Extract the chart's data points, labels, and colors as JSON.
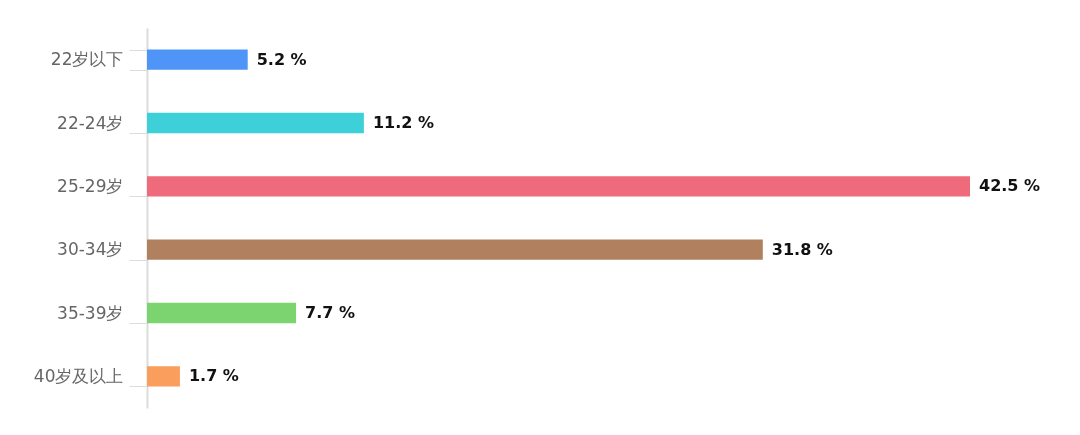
{
  "chart_data": {
    "type": "bar",
    "orientation": "horizontal",
    "categories": [
      "22岁以下",
      "22-24岁",
      "25-29岁",
      "30-34岁",
      "35-39岁",
      "40岁及以上"
    ],
    "values": [
      5.2,
      11.2,
      42.5,
      31.8,
      7.7,
      1.7
    ],
    "colors": [
      "#4f95f7",
      "#3dd0d8",
      "#ef6a7a",
      "#b0805f",
      "#7bd46f",
      "#f99e5c"
    ],
    "value_labels": [
      "5.2 %",
      "11.2 %",
      "42.5 %",
      "31.8 %",
      "7.7 %",
      "1.7 %"
    ],
    "legend": false
  }
}
